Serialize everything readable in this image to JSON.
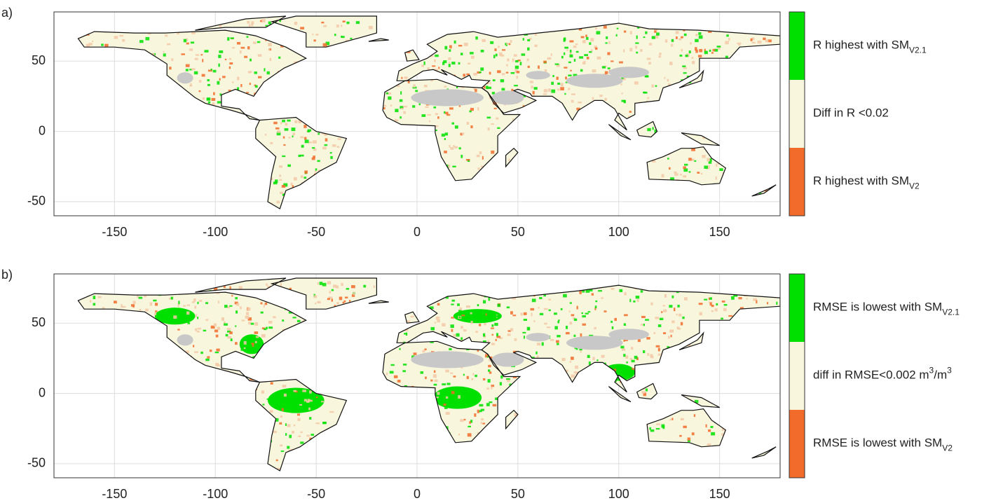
{
  "panels": [
    {
      "label": "a)",
      "xlim": [
        -180,
        180
      ],
      "ylim": [
        -60,
        85
      ],
      "xticks": [
        -150,
        -100,
        -50,
        0,
        50,
        100,
        150
      ],
      "yticks": [
        -50,
        0,
        50
      ],
      "legend": [
        {
          "color": "#00e000",
          "parts": [
            {
              "text": "R highest with SM"
            },
            {
              "text": "V2.1",
              "pos": "sub"
            }
          ]
        },
        {
          "color": "#f8f6dc",
          "parts": [
            {
              "text": "Diff in R <0.02"
            }
          ]
        },
        {
          "color": "#f26b2a",
          "parts": [
            {
              "text": "R highest with SM"
            },
            {
              "text": "V2",
              "pos": "sub"
            }
          ]
        }
      ]
    },
    {
      "label": "b)",
      "xlim": [
        -180,
        180
      ],
      "ylim": [
        -60,
        85
      ],
      "xticks": [
        -150,
        -100,
        -50,
        0,
        50,
        100,
        150
      ],
      "yticks": [
        -50,
        0,
        50
      ],
      "legend": [
        {
          "color": "#00e000",
          "parts": [
            {
              "text": "RMSE is lowest with SM"
            },
            {
              "text": "V2.1",
              "pos": "sub"
            }
          ]
        },
        {
          "color": "#f8f6dc",
          "parts": [
            {
              "text": "diff in RMSE<0.002 m"
            },
            {
              "text": "3",
              "pos": "sup"
            },
            {
              "text": "/m"
            },
            {
              "text": "3",
              "pos": "sup"
            }
          ]
        },
        {
          "color": "#f26b2a",
          "parts": [
            {
              "text": "RMSE is lowest with SM"
            },
            {
              "text": "V2",
              "pos": "sub"
            }
          ]
        }
      ]
    }
  ]
}
